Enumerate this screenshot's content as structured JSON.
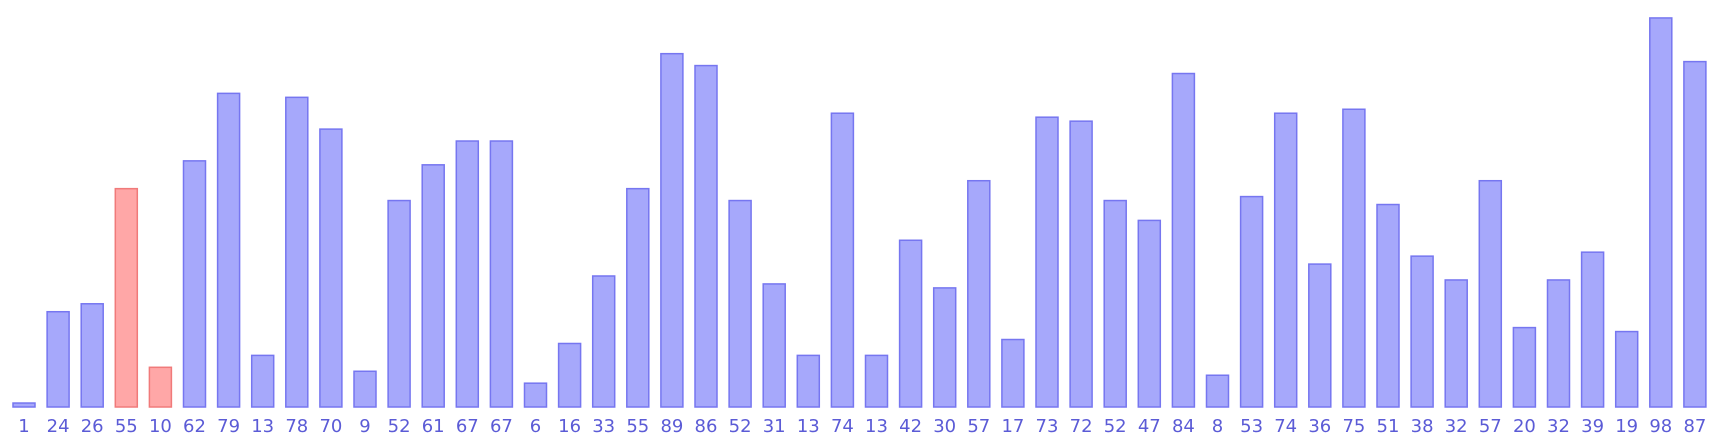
{
  "chart_data": {
    "type": "bar",
    "categories": [
      "1",
      "24",
      "26",
      "55",
      "10",
      "62",
      "79",
      "13",
      "78",
      "70",
      "9",
      "52",
      "61",
      "67",
      "67",
      "6",
      "16",
      "33",
      "55",
      "89",
      "86",
      "52",
      "31",
      "13",
      "74",
      "13",
      "42",
      "30",
      "57",
      "17",
      "73",
      "72",
      "52",
      "47",
      "84",
      "8",
      "53",
      "74",
      "36",
      "75",
      "51",
      "38",
      "32",
      "57",
      "20",
      "32",
      "39",
      "19",
      "98",
      "87"
    ],
    "values": [
      1,
      24,
      26,
      55,
      10,
      62,
      79,
      13,
      78,
      70,
      9,
      52,
      61,
      67,
      67,
      6,
      16,
      33,
      55,
      89,
      86,
      52,
      31,
      13,
      74,
      13,
      42,
      30,
      57,
      17,
      73,
      72,
      52,
      47,
      84,
      8,
      53,
      74,
      36,
      75,
      51,
      38,
      32,
      57,
      20,
      32,
      39,
      19,
      98,
      87
    ],
    "highlighted_indices": [
      3,
      4
    ],
    "ylim": [
      0,
      100
    ],
    "title": "",
    "xlabel": "",
    "ylabel": "",
    "grid": false,
    "legend": "none",
    "colors": {
      "bar_fill": "#a6a8fb",
      "bar_stroke": "#7676f0",
      "highlight_fill": "#ffa7a7",
      "highlight_stroke": "#f07a7a",
      "label": "#5b5bd6"
    }
  }
}
